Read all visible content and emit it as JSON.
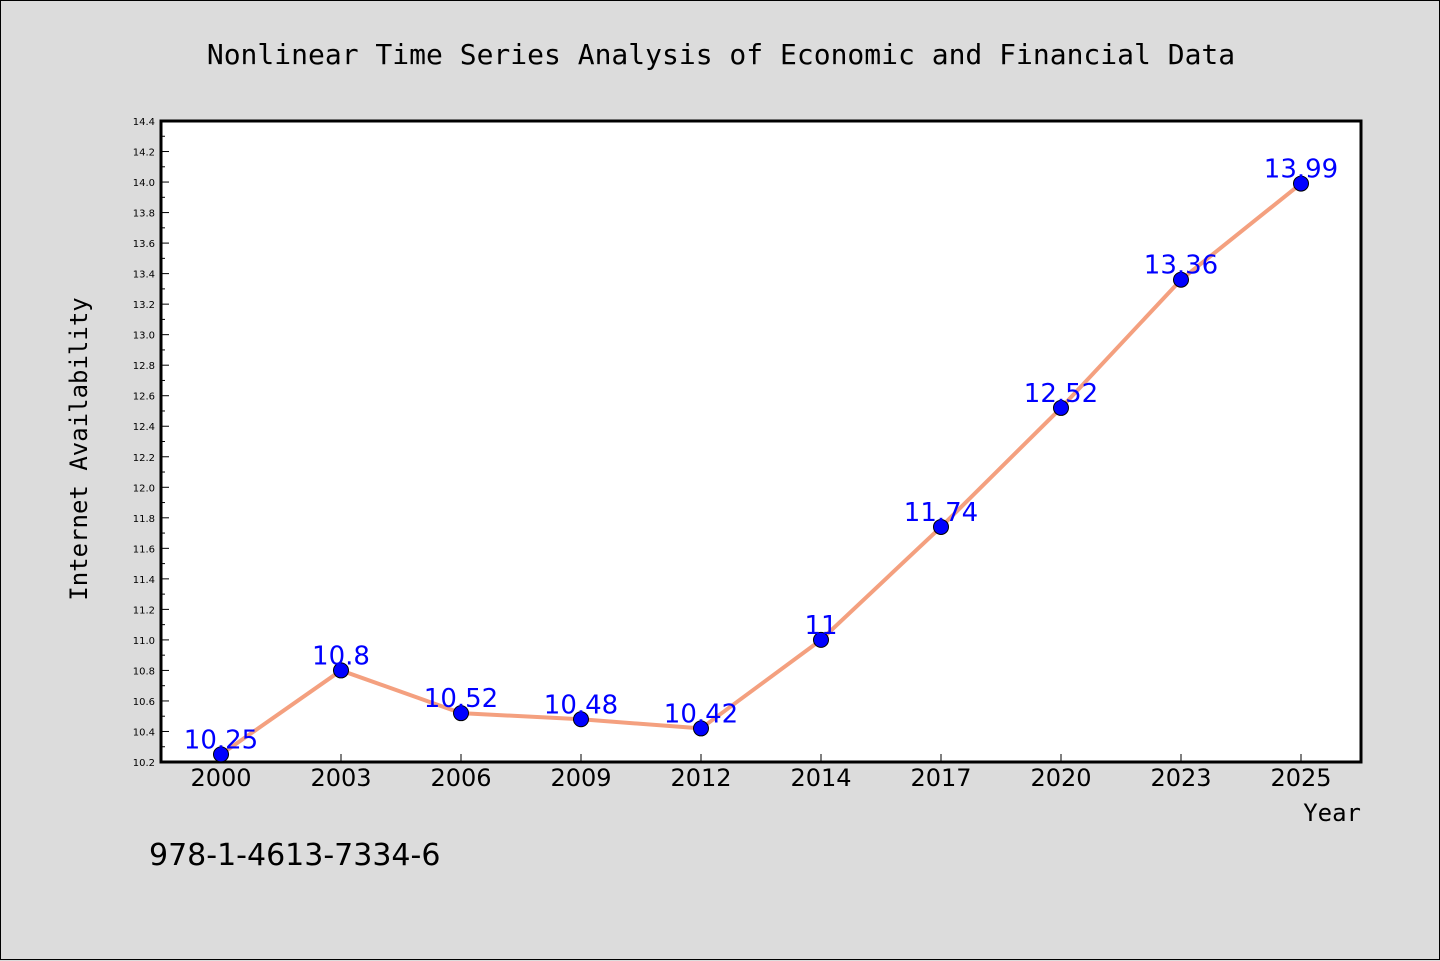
{
  "chart_data": {
    "type": "line",
    "title": "Nonlinear Time Series Analysis of Economic and Financial Data",
    "xlabel": "Year",
    "ylabel": "Internet Availability",
    "categories": [
      "2000",
      "2003",
      "2006",
      "2009",
      "2012",
      "2014",
      "2017",
      "2020",
      "2023",
      "2025"
    ],
    "values": [
      10.25,
      10.8,
      10.52,
      10.48,
      10.42,
      11,
      11.74,
      12.52,
      13.36,
      13.99
    ],
    "data_labels": [
      "10.25",
      "10.8",
      "10.52",
      "10.48",
      "10.42",
      "11",
      "11.74",
      "12.52",
      "13.36",
      "13.99"
    ],
    "ylim": [
      10.2,
      14.4
    ],
    "yticks": [
      "10.2",
      "10.4",
      "10.6",
      "10.8",
      "11.0",
      "11.2",
      "11.4",
      "11.6",
      "11.8",
      "12.0",
      "12.2",
      "12.4",
      "12.6",
      "12.8",
      "13.0",
      "13.2",
      "13.4",
      "13.6",
      "13.8",
      "14.0",
      "14.2",
      "14.4"
    ],
    "grid": false,
    "legend": "none",
    "colors": {
      "line": "#f4a07f",
      "marker": "#0000ff",
      "label": "#0000ff",
      "background": "#dcdcdc",
      "plot_background": "#ffffff"
    }
  },
  "footer": {
    "isbn": "978-1-4613-7334-6"
  }
}
